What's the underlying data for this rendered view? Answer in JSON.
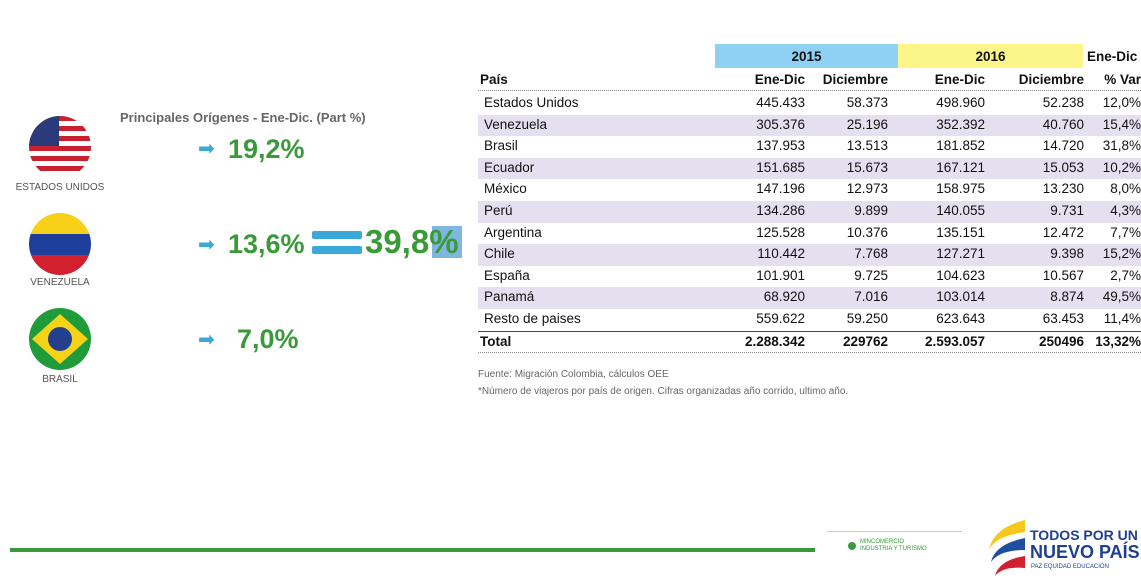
{
  "left": {
    "title": "Principales Orígenes - Ene-Dic. (Part %)",
    "items": [
      {
        "label": "ESTADOS UNIDOS",
        "share": "19,2%"
      },
      {
        "label": "VENEZUELA",
        "share": "13,6%"
      },
      {
        "label": "BRASIL",
        "share": "7,0%"
      }
    ],
    "combined": "39,8%"
  },
  "table": {
    "groups": [
      "2015",
      "2016",
      "Ene-Dic"
    ],
    "columns": [
      "País",
      "Ene-Dic",
      "Diciembre",
      "Ene-Dic",
      "Diciembre",
      "% Var"
    ],
    "rows": [
      [
        "Estados Unidos",
        "445.433",
        "58.373",
        "498.960",
        "52.238",
        "12,0%"
      ],
      [
        "Venezuela",
        "305.376",
        "25.196",
        "352.392",
        "40.760",
        "15,4%"
      ],
      [
        "Brasil",
        "137.953",
        "13.513",
        "181.852",
        "14.720",
        "31,8%"
      ],
      [
        "Ecuador",
        "151.685",
        "15.673",
        "167.121",
        "15.053",
        "10,2%"
      ],
      [
        "México",
        "147.196",
        "12.973",
        "158.975",
        "13.230",
        "8,0%"
      ],
      [
        "Perú",
        "134.286",
        "9.899",
        "140.055",
        "9.731",
        "4,3%"
      ],
      [
        "Argentina",
        "125.528",
        "10.376",
        "135.151",
        "12.472",
        "7,7%"
      ],
      [
        "Chile",
        "110.442",
        "7.768",
        "127.271",
        "9.398",
        "15,2%"
      ],
      [
        "España",
        "101.901",
        "9.725",
        "104.623",
        "10.567",
        "2,7%"
      ],
      [
        "Panamá",
        "68.920",
        "7.016",
        "103.014",
        "8.874",
        "49,5%"
      ],
      [
        "Resto de paises",
        "559.622",
        "59.250",
        "623.643",
        "63.453",
        "11,4%"
      ]
    ],
    "total": [
      "Total",
      "2.288.342",
      "229762",
      "2.593.057",
      "250496",
      "13,32%"
    ]
  },
  "notes": [
    "Fuente: Migración Colombia, cálculos OEE",
    "*Número de viajeros por país de origen. Cifras organizadas año corrido, ultimo año."
  ],
  "logos": {
    "ministry": [
      "MINCOMERCIO",
      "INDUSTRIA Y TURISMO"
    ],
    "brand": [
      "TODOS POR UN",
      "NUEVO PAÍS",
      "PAZ  EQUIDAD  EDUCACIÓN"
    ]
  }
}
